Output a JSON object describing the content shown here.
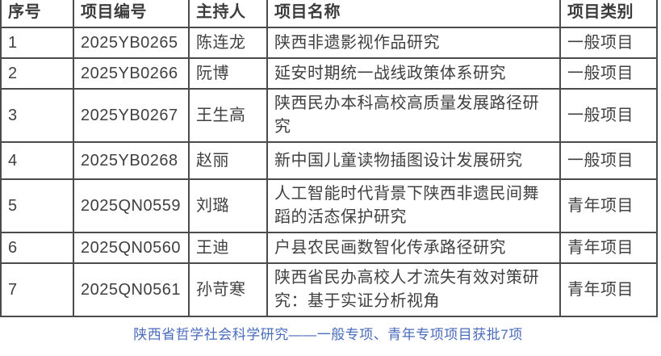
{
  "table": {
    "columns": [
      {
        "label": "序号"
      },
      {
        "label": "项目编号"
      },
      {
        "label": "主持人"
      },
      {
        "label": "项目名称"
      },
      {
        "label": "项目类别"
      }
    ],
    "rows": [
      {
        "index": "1",
        "code": "2025YB0265",
        "leader": "陈连龙",
        "name": "陕西非遗影视作品研究",
        "category": "一般项目"
      },
      {
        "index": "2",
        "code": "2025YB0266",
        "leader": "阮博",
        "name": "延安时期统一战线政策体系研究",
        "category": "一般项目"
      },
      {
        "index": "3",
        "code": "2025YB0267",
        "leader": "王生高",
        "name": "陕西民办本科高校高质量发展路径研究",
        "category": "一般项目"
      },
      {
        "index": "4",
        "code": "2025YB0268",
        "leader": "赵丽",
        "name": "新中国儿童读物插图设计发展研究",
        "category": "一般项目"
      },
      {
        "index": "5",
        "code": "2025QN0559",
        "leader": "刘璐",
        "name": "人工智能时代背景下陕西非遗民间舞蹈的活态保护研究",
        "category": "青年项目"
      },
      {
        "index": "6",
        "code": "2025QN0560",
        "leader": "王迪",
        "name": "户县农民画数智化传承路径研究",
        "category": "青年项目"
      },
      {
        "index": "7",
        "code": "2025QN0561",
        "leader": "孙苛寒",
        "name": "陕西省民办高校人才流失有效对策研究：基于实证分析视角",
        "category": "青年项目"
      }
    ]
  },
  "caption": {
    "text": "陕西省哲学社会科学研究——一般专项、青年专项项目获批7项"
  },
  "colors": {
    "border": "#4b4b4b",
    "text": "#404040",
    "caption_blue": "#4a6cbd",
    "background": "#ffffff"
  }
}
